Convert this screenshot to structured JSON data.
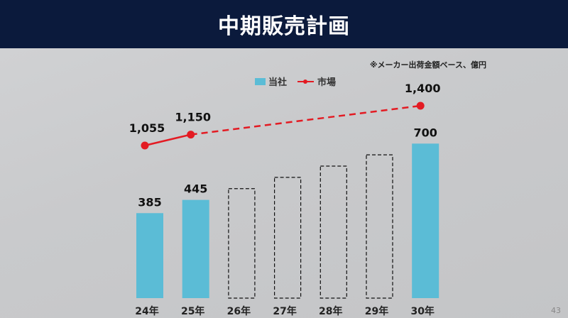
{
  "header": {
    "title": "中期販売計画"
  },
  "note": "※メーカー出荷金額ベース、億円",
  "page_number": "43",
  "colors": {
    "bar": "#5bbcd6",
    "line": "#e31b23",
    "header_bg": "#0b1a3c"
  },
  "chart_data": {
    "type": "bar",
    "categories": [
      "24年",
      "25年",
      "26年",
      "27年",
      "28年",
      "29年",
      "30年"
    ],
    "series": [
      {
        "name": "当社",
        "type": "bar",
        "values": [
          385,
          445,
          null,
          null,
          null,
          null,
          700
        ],
        "planned_placeholder": [
          false,
          false,
          true,
          true,
          true,
          true,
          false
        ]
      },
      {
        "name": "市場",
        "type": "line",
        "x": [
          "24年",
          "25年",
          "30年"
        ],
        "values": [
          1055,
          1150,
          1400
        ]
      }
    ],
    "legend": [
      "当社",
      "市場"
    ],
    "legend_position": "top",
    "unit": "※メーカー出荷金額ベース、億円"
  }
}
